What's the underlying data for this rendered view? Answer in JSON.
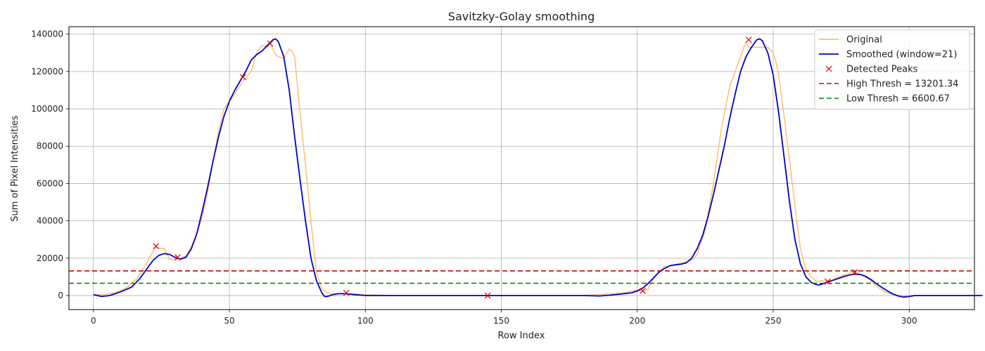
{
  "chart_data": {
    "type": "line",
    "title": "Savitzky-Golay smoothing",
    "xlabel": "Row Index",
    "ylabel": "Sum of Pixel Intensities",
    "xlim": [
      -9,
      324
    ],
    "ylim": [
      -7500,
      144000
    ],
    "xticks": [
      0,
      50,
      100,
      150,
      200,
      250,
      300
    ],
    "yticks": [
      0,
      20000,
      40000,
      60000,
      80000,
      100000,
      120000,
      140000
    ],
    "grid": true,
    "legend_position": "top-right",
    "series": [
      {
        "name": "Original",
        "kind": "line",
        "color": "#ffbe6f",
        "x": [
          0,
          4,
          8,
          12,
          16,
          19,
          21,
          22,
          23,
          24,
          26,
          28,
          30,
          32,
          34,
          36,
          38,
          40,
          42,
          44,
          46,
          48,
          50,
          52,
          55,
          58,
          60,
          62,
          64,
          65,
          66,
          67,
          68,
          70,
          72,
          73,
          74,
          76,
          78,
          80,
          82,
          84,
          86,
          88,
          90,
          93,
          96,
          100,
          105,
          110,
          120,
          140,
          160,
          180,
          195,
          200,
          202,
          204,
          206,
          208,
          210,
          213,
          216,
          218,
          220,
          222,
          225,
          228,
          231,
          234,
          237,
          239,
          240,
          241,
          243,
          246,
          248,
          250,
          251,
          252,
          254,
          256,
          258,
          260,
          262,
          264,
          266,
          268,
          270,
          272,
          274,
          276,
          278,
          280,
          282,
          285,
          288,
          291,
          294,
          296,
          298,
          300,
          302,
          310,
          320,
          327
        ],
        "y": [
          500,
          500,
          1500,
          4000,
          9000,
          16000,
          21000,
          24000,
          26000,
          25500,
          25000,
          19500,
          19000,
          20000,
          21000,
          26000,
          33000,
          42000,
          55000,
          72000,
          88000,
          100000,
          104000,
          108000,
          115000,
          120000,
          130000,
          134000,
          133000,
          135000,
          132000,
          129000,
          128000,
          127000,
          132000,
          131000,
          128000,
          98000,
          70000,
          40000,
          12000,
          4000,
          1500,
          1000,
          900,
          1000,
          900,
          500,
          200,
          0,
          0,
          0,
          0,
          0,
          1500,
          3000,
          2000,
          3500,
          9000,
          13000,
          15500,
          16000,
          17500,
          18000,
          19000,
          22000,
          35000,
          60000,
          90000,
          112000,
          124000,
          132000,
          136000,
          133000,
          133000,
          133000,
          133000,
          130000,
          125000,
          118000,
          96000,
          72000,
          48000,
          25000,
          14000,
          10000,
          7500,
          8000,
          7500,
          8500,
          10000,
          11000,
          12000,
          12500,
          11500,
          9000,
          5000,
          2000,
          500,
          0,
          0,
          0,
          0,
          0,
          0,
          0
        ]
      },
      {
        "name": "Smoothed (window=21)",
        "kind": "line",
        "color": "#0000cc",
        "x": [
          0,
          3,
          6,
          10,
          14,
          17,
          20,
          22,
          24,
          26,
          28,
          30,
          32,
          34,
          36,
          38,
          40,
          42,
          44,
          46,
          48,
          50,
          52,
          54,
          56,
          58,
          60,
          62,
          64,
          66,
          67,
          68,
          70,
          72,
          74,
          76,
          78,
          80,
          82,
          84,
          85,
          86,
          88,
          90,
          92,
          94,
          96,
          100,
          105,
          120,
          140,
          160,
          180,
          186,
          190,
          194,
          198,
          200,
          202,
          204,
          206,
          208,
          210,
          212,
          214,
          216,
          218,
          220,
          222,
          224,
          226,
          228,
          230,
          232,
          234,
          236,
          238,
          240,
          242,
          244,
          245,
          246,
          248,
          250,
          252,
          254,
          256,
          258,
          260,
          262,
          264,
          266,
          267,
          268,
          270,
          272,
          274,
          276,
          278,
          280,
          282,
          284,
          286,
          288,
          290,
          292,
          294,
          296,
          298,
          300,
          302,
          310,
          320,
          327
        ],
        "y": [
          500,
          -500,
          0,
          2000,
          4500,
          9000,
          15000,
          19000,
          21500,
          22500,
          22000,
          20500,
          19500,
          20500,
          25000,
          33000,
          45000,
          58000,
          72000,
          85000,
          96000,
          104000,
          110000,
          115000,
          120000,
          126000,
          129000,
          131000,
          134000,
          137000,
          137500,
          136000,
          128000,
          110000,
          85000,
          62000,
          40000,
          20000,
          8000,
          1500,
          -500,
          -500,
          500,
          1000,
          1000,
          800,
          500,
          0,
          0,
          0,
          0,
          0,
          0,
          -200,
          200,
          800,
          1500,
          2500,
          4000,
          6500,
          9500,
          12500,
          14500,
          16000,
          16500,
          16800,
          17500,
          20000,
          25000,
          32000,
          42000,
          54000,
          67000,
          80000,
          95000,
          108000,
          120000,
          128000,
          133000,
          137000,
          137500,
          136500,
          130000,
          118000,
          98000,
          74000,
          50000,
          30000,
          17000,
          10000,
          7000,
          5800,
          5700,
          6200,
          7200,
          8200,
          9200,
          10200,
          11000,
          11500,
          11300,
          10300,
          8500,
          6300,
          4300,
          2500,
          900,
          -200,
          -800,
          -500,
          0,
          0,
          0,
          0
        ]
      },
      {
        "name": "Detected Peaks",
        "kind": "marker",
        "marker": "x",
        "color": "#e00000",
        "x": [
          23,
          31,
          55,
          65,
          93,
          145,
          202,
          241,
          270,
          280
        ],
        "y": [
          26500,
          20500,
          117000,
          135000,
          1500,
          0,
          2500,
          137000,
          7500,
          12500
        ]
      },
      {
        "name": "High Thresh = 13201.34",
        "kind": "hline",
        "style": "dashed",
        "color": "#d00000",
        "y": 13201.34
      },
      {
        "name": "Low Thresh = 6600.67",
        "kind": "hline",
        "style": "dashed",
        "color": "#008000",
        "y": 6600.67
      }
    ]
  }
}
